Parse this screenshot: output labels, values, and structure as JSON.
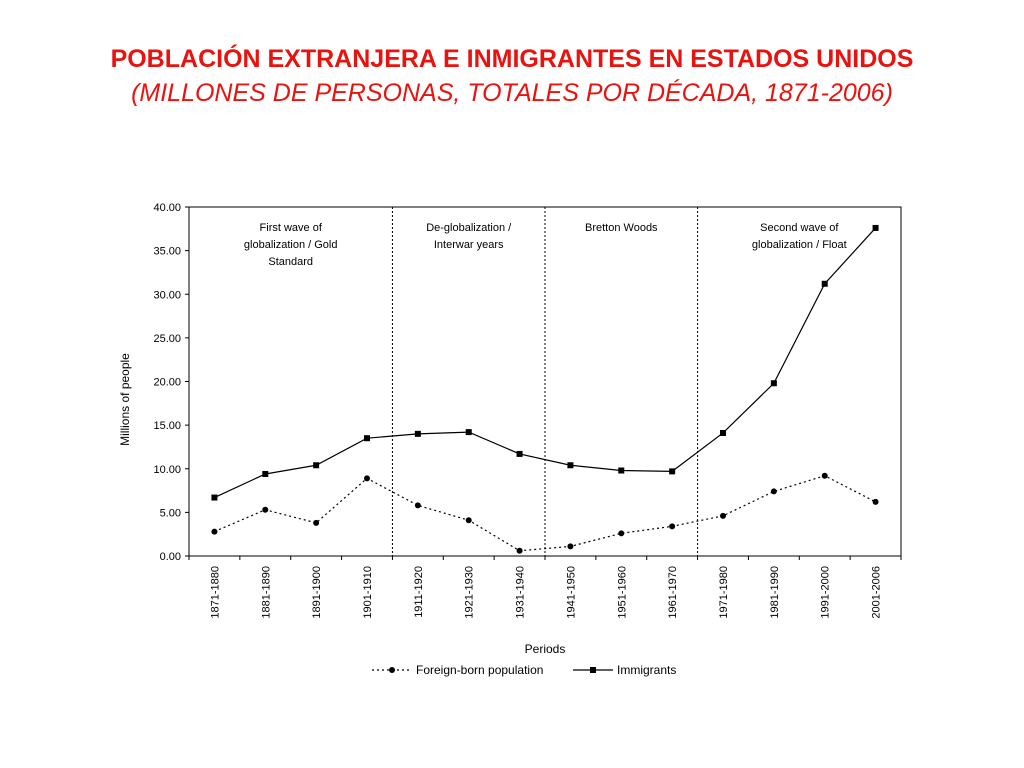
{
  "title": "POBLACIÓN EXTRANJERA E INMIGRANTES EN ESTADOS UNIDOS",
  "subtitle": "(MILLONES DE PERSONAS, TOTALES POR DÉCADA,  1871-2006)",
  "chart_data": {
    "type": "line",
    "categories": [
      "1871-1880",
      "1881-1890",
      "1891-1900",
      "1901-1910",
      "1911-1920",
      "1921-1930",
      "1931-1940",
      "1941-1950",
      "1951-1960",
      "1961-1970",
      "1971-1980",
      "1981-1990",
      "1991-2000",
      "2001-2006"
    ],
    "series": [
      {
        "name": "Foreign-born population",
        "values": [
          2.8,
          5.3,
          3.8,
          8.9,
          5.8,
          4.1,
          0.6,
          1.1,
          2.6,
          3.4,
          4.6,
          7.4,
          9.2,
          6.2
        ],
        "line_style": "dotted",
        "marker": "circle",
        "color": "#000000"
      },
      {
        "name": "Immigrants",
        "values": [
          6.7,
          9.4,
          10.4,
          13.5,
          14.0,
          14.2,
          11.7,
          10.4,
          9.8,
          9.7,
          14.1,
          19.8,
          31.2,
          37.6
        ],
        "line_style": "solid",
        "marker": "square",
        "color": "#000000"
      }
    ],
    "xlabel": "Periods",
    "ylabel": "Millions of people",
    "ylim": [
      0,
      40
    ],
    "yticks": [
      "0.00",
      "5.00",
      "10.00",
      "15.00",
      "20.00",
      "25.00",
      "30.00",
      "35.00",
      "40.00"
    ],
    "grid": false,
    "legend_position": "bottom",
    "dividers_after_category": [
      3,
      6,
      9
    ],
    "annotations": [
      {
        "lines": [
          "First wave of",
          "globalization / Gold",
          "Standard"
        ]
      },
      {
        "lines": [
          "De-globalization /",
          "Interwar years"
        ]
      },
      {
        "lines": [
          "Bretton Woods"
        ]
      },
      {
        "lines": [
          "Second wave of",
          "globalization / Float"
        ]
      }
    ]
  }
}
